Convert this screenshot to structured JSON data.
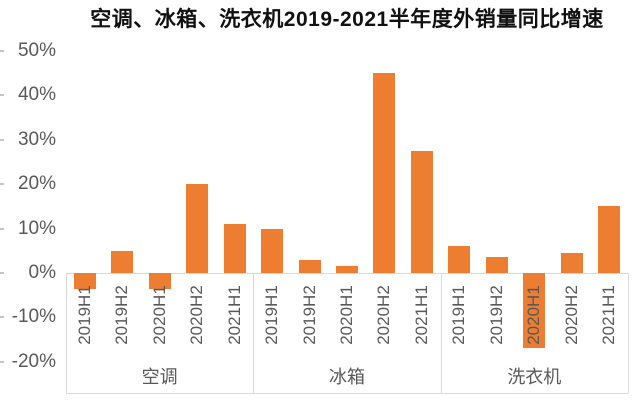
{
  "title": "空调、冰箱、洗衣机2019-2021半年度外销量同比增速",
  "chart_data": {
    "type": "bar",
    "title": "空调、冰箱、洗衣机2019-2021半年度外销量同比增速",
    "categories": [
      "2019H1",
      "2019H2",
      "2020H1",
      "2020H2",
      "2021H1"
    ],
    "series": [
      {
        "name": "空调",
        "values": [
          -3.5,
          5,
          -3.5,
          20,
          11
        ]
      },
      {
        "name": "冰箱",
        "values": [
          10,
          3,
          1.5,
          45,
          27.5
        ]
      },
      {
        "name": "洗衣机",
        "values": [
          6,
          3.5,
          -17,
          4.5,
          15
        ]
      }
    ],
    "unit": "%",
    "ylim": [
      -20,
      50
    ],
    "yticks": [
      50,
      40,
      30,
      20,
      10,
      0,
      -10,
      -20
    ],
    "ytick_labels": [
      "50%",
      "40%",
      "30%",
      "20%",
      "10%",
      "0%",
      "-10%",
      "-20%"
    ],
    "xlabel": "",
    "ylabel": "",
    "grid": false,
    "legend_position": "none",
    "bar_color": "#ED7D31",
    "axis_text_color": "#595959",
    "border_color": "#d9d9d9"
  }
}
